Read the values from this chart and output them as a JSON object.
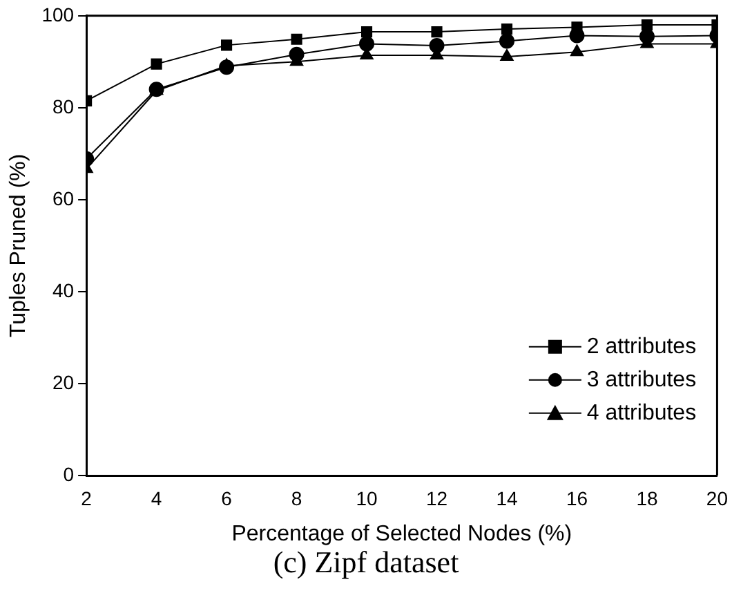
{
  "chart_data": {
    "type": "line",
    "xlabel": "Percentage of Selected Nodes (%)",
    "ylabel": "Tuples Pruned (%)",
    "annotations": [
      "(c) Zipf dataset"
    ],
    "x": [
      2,
      4,
      6,
      8,
      10,
      12,
      14,
      16,
      18,
      20
    ],
    "series": [
      {
        "name": "2 attributes",
        "color": "#000000",
        "marker": "square",
        "values": [
          81.5,
          89.5,
          93.6,
          94.9,
          96.5,
          96.5,
          97.1,
          97.5,
          98.0,
          98.0
        ]
      },
      {
        "name": "3 attributes",
        "color": "#000000",
        "marker": "circle",
        "values": [
          68.9,
          84.0,
          88.8,
          91.6,
          93.9,
          93.5,
          94.5,
          95.7,
          95.5,
          95.7
        ]
      },
      {
        "name": "4 attributes",
        "color": "#000000",
        "marker": "triangle",
        "values": [
          66.7,
          83.7,
          89.1,
          90.0,
          91.4,
          91.4,
          91.1,
          92.1,
          93.9,
          93.9
        ]
      }
    ],
    "xlim": [
      2,
      20
    ],
    "xticks": [
      2,
      4,
      6,
      8,
      10,
      12,
      14,
      16,
      18,
      20
    ],
    "ylim": [
      0,
      100
    ],
    "yticks": [
      0,
      20,
      40,
      60,
      80,
      100
    ],
    "grid": false,
    "legend": "bottom right"
  }
}
